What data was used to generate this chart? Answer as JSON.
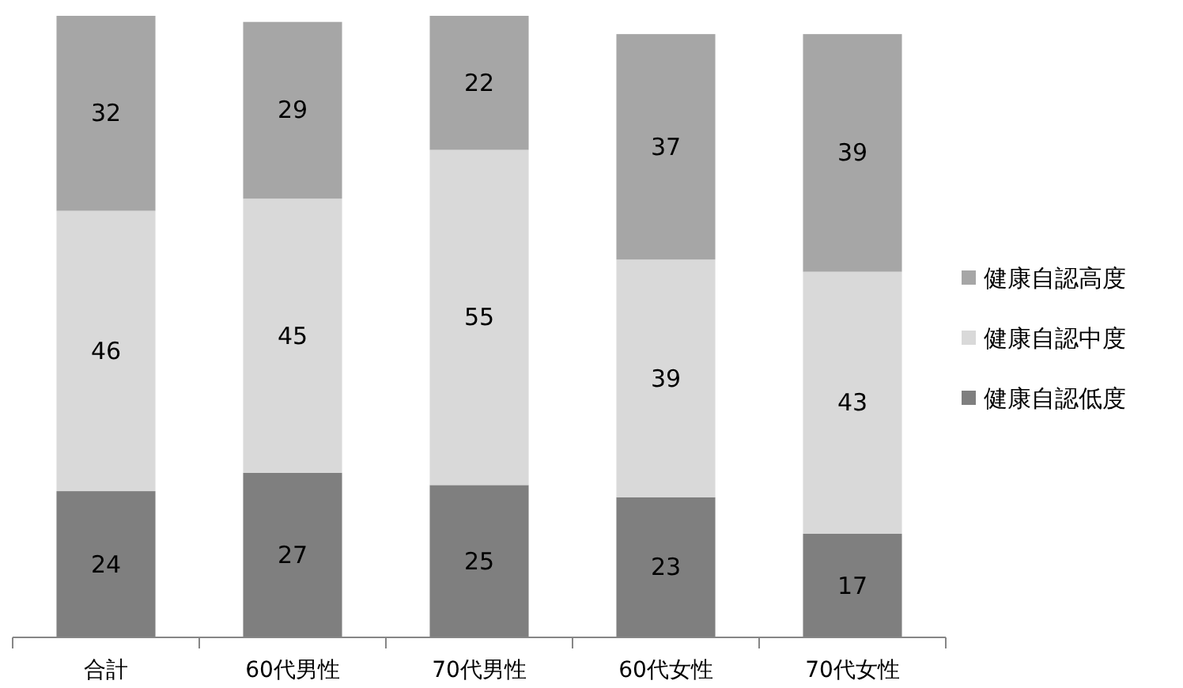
{
  "chart_data": {
    "type": "bar",
    "stacked": true,
    "data_labels": true,
    "legend": "right",
    "categories": [
      "合計",
      "60代男性",
      "70代男性",
      "60代女性",
      "70代女性"
    ],
    "series": [
      {
        "name": "健康自認低度",
        "color": "#7f7f7f",
        "values": [
          24,
          27,
          25,
          23,
          17
        ]
      },
      {
        "name": "健康自認中度",
        "color": "#d9d9d9",
        "values": [
          46,
          45,
          55,
          39,
          43
        ]
      },
      {
        "name": "健康自認高度",
        "color": "#a6a6a6",
        "values": [
          32,
          29,
          22,
          37,
          39
        ]
      }
    ]
  }
}
